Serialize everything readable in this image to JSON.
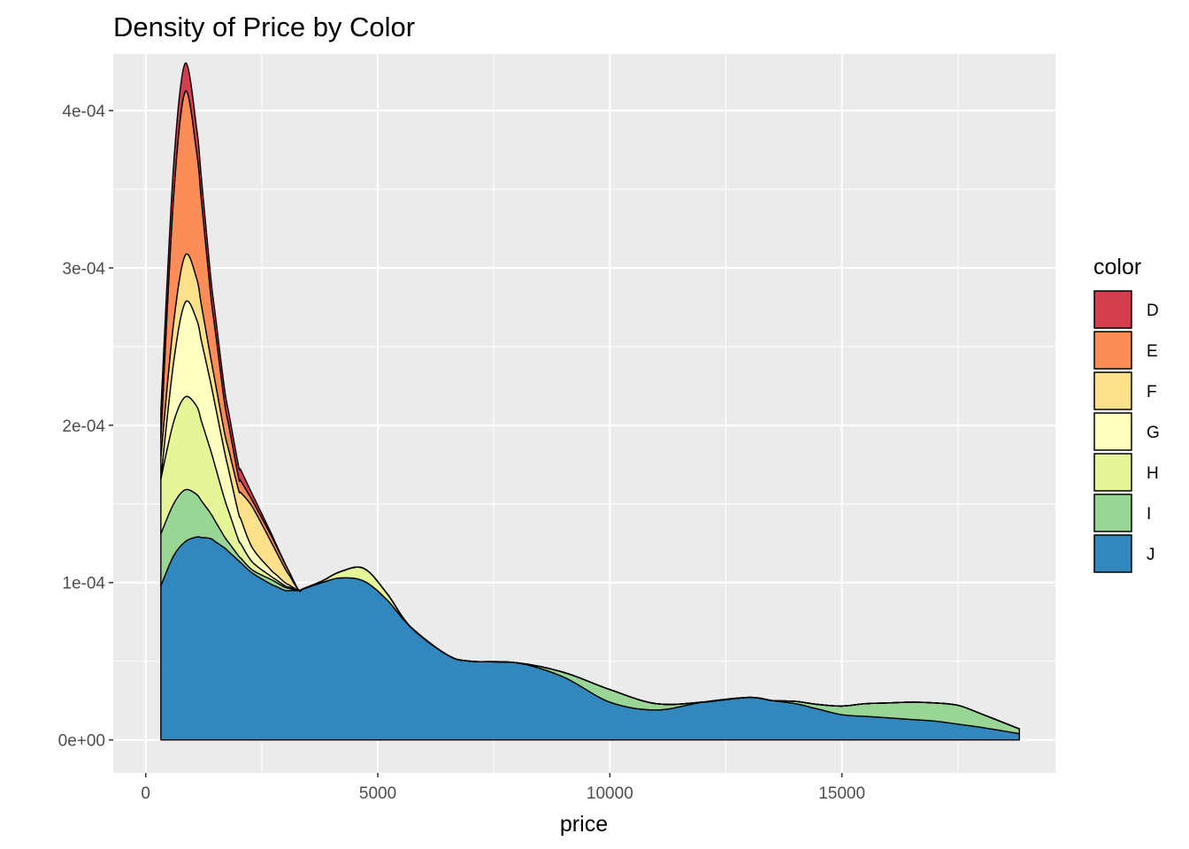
{
  "chart_data": {
    "type": "area",
    "stacked": true,
    "title": "Density of Price by Color",
    "xlabel": "price",
    "ylabel": "",
    "xlim": [
      -700,
      19600
    ],
    "ylim": [
      -2.1e-05,
      0.000436
    ],
    "x_ticks": [
      0,
      5000,
      10000,
      15000
    ],
    "x_tick_labels": [
      "0",
      "5000",
      "10000",
      "15000"
    ],
    "y_ticks": [
      0,
      0.0001,
      0.0002,
      0.0003,
      0.0004
    ],
    "y_tick_labels": [
      "0e+00",
      "1e-04",
      "2e-04",
      "3e-04",
      "4e-04"
    ],
    "grid": true,
    "legend": {
      "title": "color",
      "position": "right"
    },
    "series": [
      {
        "name": "D",
        "color": "#D53E4F",
        "points": [
          [
            326,
            1.8e-05
          ],
          [
            600,
            2e-05
          ],
          [
            850,
            1.8e-05
          ],
          [
            1200,
            1.4e-05
          ],
          [
            1500,
            1e-05
          ],
          [
            1800,
            8e-06
          ],
          [
            2050,
            7e-06
          ],
          [
            2300,
            4e-06
          ],
          [
            2800,
            1e-06
          ],
          [
            3100,
            0
          ],
          [
            3400,
            0
          ],
          [
            18823,
            0
          ]
        ]
      },
      {
        "name": "E",
        "color": "#FC8D59",
        "points": [
          [
            326,
            1.2e-05
          ],
          [
            600,
            8e-05
          ],
          [
            850,
            0.000104
          ],
          [
            1100,
            8e-05
          ],
          [
            1400,
            4e-05
          ],
          [
            1700,
            1.9e-05
          ],
          [
            2000,
            8e-06
          ],
          [
            2300,
            4e-06
          ],
          [
            2700,
            4e-06
          ],
          [
            3000,
            3e-06
          ],
          [
            3300,
            0
          ],
          [
            18823,
            0
          ]
        ]
      },
      {
        "name": "F",
        "color": "#FEE08B",
        "points": [
          [
            326,
            1.4e-05
          ],
          [
            600,
            2.5e-05
          ],
          [
            850,
            3e-05
          ],
          [
            1100,
            2.6e-05
          ],
          [
            1400,
            1.6e-05
          ],
          [
            1700,
            1.2e-05
          ],
          [
            2000,
            1.5e-05
          ],
          [
            2300,
            2.6e-05
          ],
          [
            2700,
            1.8e-05
          ],
          [
            3000,
            9e-06
          ],
          [
            3300,
            0
          ],
          [
            18823,
            0
          ]
        ]
      },
      {
        "name": "G",
        "color": "#FFFFBF",
        "points": [
          [
            326,
            0
          ],
          [
            600,
            3.8e-05
          ],
          [
            850,
            6e-05
          ],
          [
            1100,
            5.5e-05
          ],
          [
            1400,
            4.3e-05
          ],
          [
            1700,
            3e-05
          ],
          [
            2000,
            1.7e-05
          ],
          [
            2300,
            9e-06
          ],
          [
            2700,
            4e-06
          ],
          [
            3000,
            2e-06
          ],
          [
            3300,
            0
          ],
          [
            18823,
            0
          ]
        ]
      },
      {
        "name": "H",
        "color": "#E6F598",
        "points": [
          [
            326,
            3.5e-05
          ],
          [
            600,
            5.2e-05
          ],
          [
            850,
            5.9e-05
          ],
          [
            1100,
            5.6e-05
          ],
          [
            1400,
            4e-05
          ],
          [
            1700,
            2.4e-05
          ],
          [
            2000,
            1e-05
          ],
          [
            2300,
            5e-06
          ],
          [
            2700,
            2e-06
          ],
          [
            3000,
            1e-06
          ],
          [
            3300,
            0
          ],
          [
            3800,
            1e-06
          ],
          [
            4200,
            4e-06
          ],
          [
            4700,
            8e-06
          ],
          [
            5200,
            4e-06
          ],
          [
            5700,
            0
          ],
          [
            18823,
            0
          ]
        ]
      },
      {
        "name": "I",
        "color": "#99D594",
        "points": [
          [
            326,
            3.3e-05
          ],
          [
            600,
            3.3e-05
          ],
          [
            850,
            3.3e-05
          ],
          [
            1100,
            2.7e-05
          ],
          [
            1400,
            1.6e-05
          ],
          [
            1700,
            7e-06
          ],
          [
            2000,
            3e-06
          ],
          [
            2300,
            2e-06
          ],
          [
            2700,
            3e-06
          ],
          [
            3000,
            2e-06
          ],
          [
            3300,
            0
          ],
          [
            6500,
            0
          ],
          [
            8000,
            0
          ],
          [
            9000,
            3e-06
          ],
          [
            10000,
            8e-06
          ],
          [
            11000,
            4e-06
          ],
          [
            12000,
            0
          ],
          [
            13500,
            0
          ],
          [
            14500,
            3e-06
          ],
          [
            15500,
            8e-06
          ],
          [
            16500,
            1.1e-05
          ],
          [
            17500,
            1.2e-05
          ],
          [
            18823,
            3e-06
          ]
        ]
      },
      {
        "name": "J",
        "color": "#3288BD",
        "points": [
          [
            326,
            9.8e-05
          ],
          [
            600,
            0.000117
          ],
          [
            850,
            0.000126
          ],
          [
            1100,
            0.000129
          ],
          [
            1400,
            0.000128
          ],
          [
            1700,
            0.000122
          ],
          [
            2000,
            0.000114
          ],
          [
            2300,
            0.000106
          ],
          [
            2700,
            9.9e-05
          ],
          [
            3000,
            9.5e-05
          ],
          [
            3300,
            9.5e-05
          ],
          [
            3800,
            0.0001
          ],
          [
            4200,
            0.000103
          ],
          [
            4700,
            0.000101
          ],
          [
            5200,
            8.9e-05
          ],
          [
            5700,
            7.2e-05
          ],
          [
            6500,
            5.4e-05
          ],
          [
            7000,
            5e-05
          ],
          [
            8000,
            4.9e-05
          ],
          [
            9000,
            4e-05
          ],
          [
            10000,
            2.4e-05
          ],
          [
            11000,
            1.9e-05
          ],
          [
            12000,
            2.4e-05
          ],
          [
            13000,
            2.7e-05
          ],
          [
            14000,
            2.3e-05
          ],
          [
            15000,
            1.6e-05
          ],
          [
            16000,
            1.4e-05
          ],
          [
            17000,
            1.2e-05
          ],
          [
            18000,
            8e-06
          ],
          [
            18823,
            4e-06
          ]
        ]
      }
    ]
  }
}
